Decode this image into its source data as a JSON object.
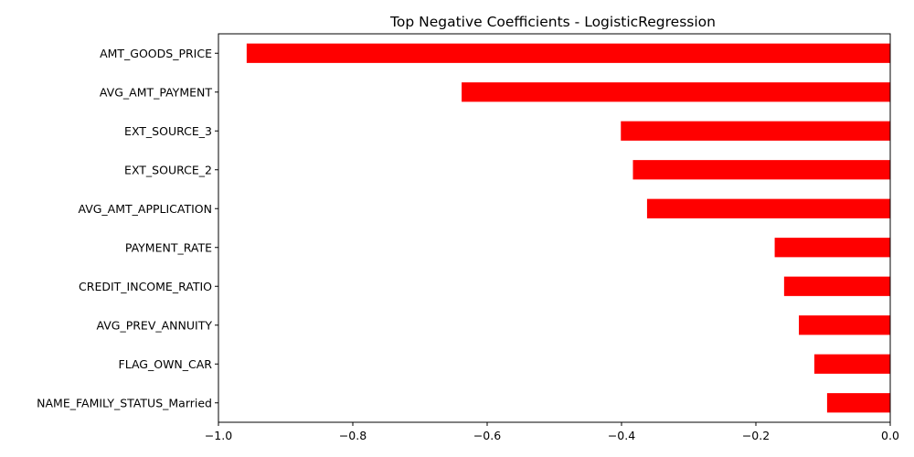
{
  "chart_data": {
    "type": "bar",
    "orientation": "horizontal",
    "title": "Top Negative Coefficients - LogisticRegression",
    "xlabel": "",
    "ylabel": "",
    "categories": [
      "AMT_GOODS_PRICE",
      "AVG_AMT_PAYMENT",
      "EXT_SOURCE_3",
      "EXT_SOURCE_2",
      "AVG_AMT_APPLICATION",
      "PAYMENT_RATE",
      "CREDIT_INCOME_RATIO",
      "AVG_PREV_ANNUITY",
      "FLAG_OWN_CAR",
      "NAME_FAMILY_STATUS_Married"
    ],
    "values": [
      -0.958,
      -0.638,
      -0.401,
      -0.383,
      -0.362,
      -0.172,
      -0.158,
      -0.136,
      -0.113,
      -0.094
    ],
    "xlim": [
      -1.0,
      0.0
    ],
    "xticks": [
      -1.0,
      -0.8,
      -0.6,
      -0.4,
      -0.2,
      0.0
    ],
    "xtick_labels": [
      "−1.0",
      "−0.8",
      "−0.6",
      "−0.4",
      "−0.2",
      "0.0"
    ],
    "bar_color": "#ff0000",
    "grid": false,
    "legend": "none"
  }
}
